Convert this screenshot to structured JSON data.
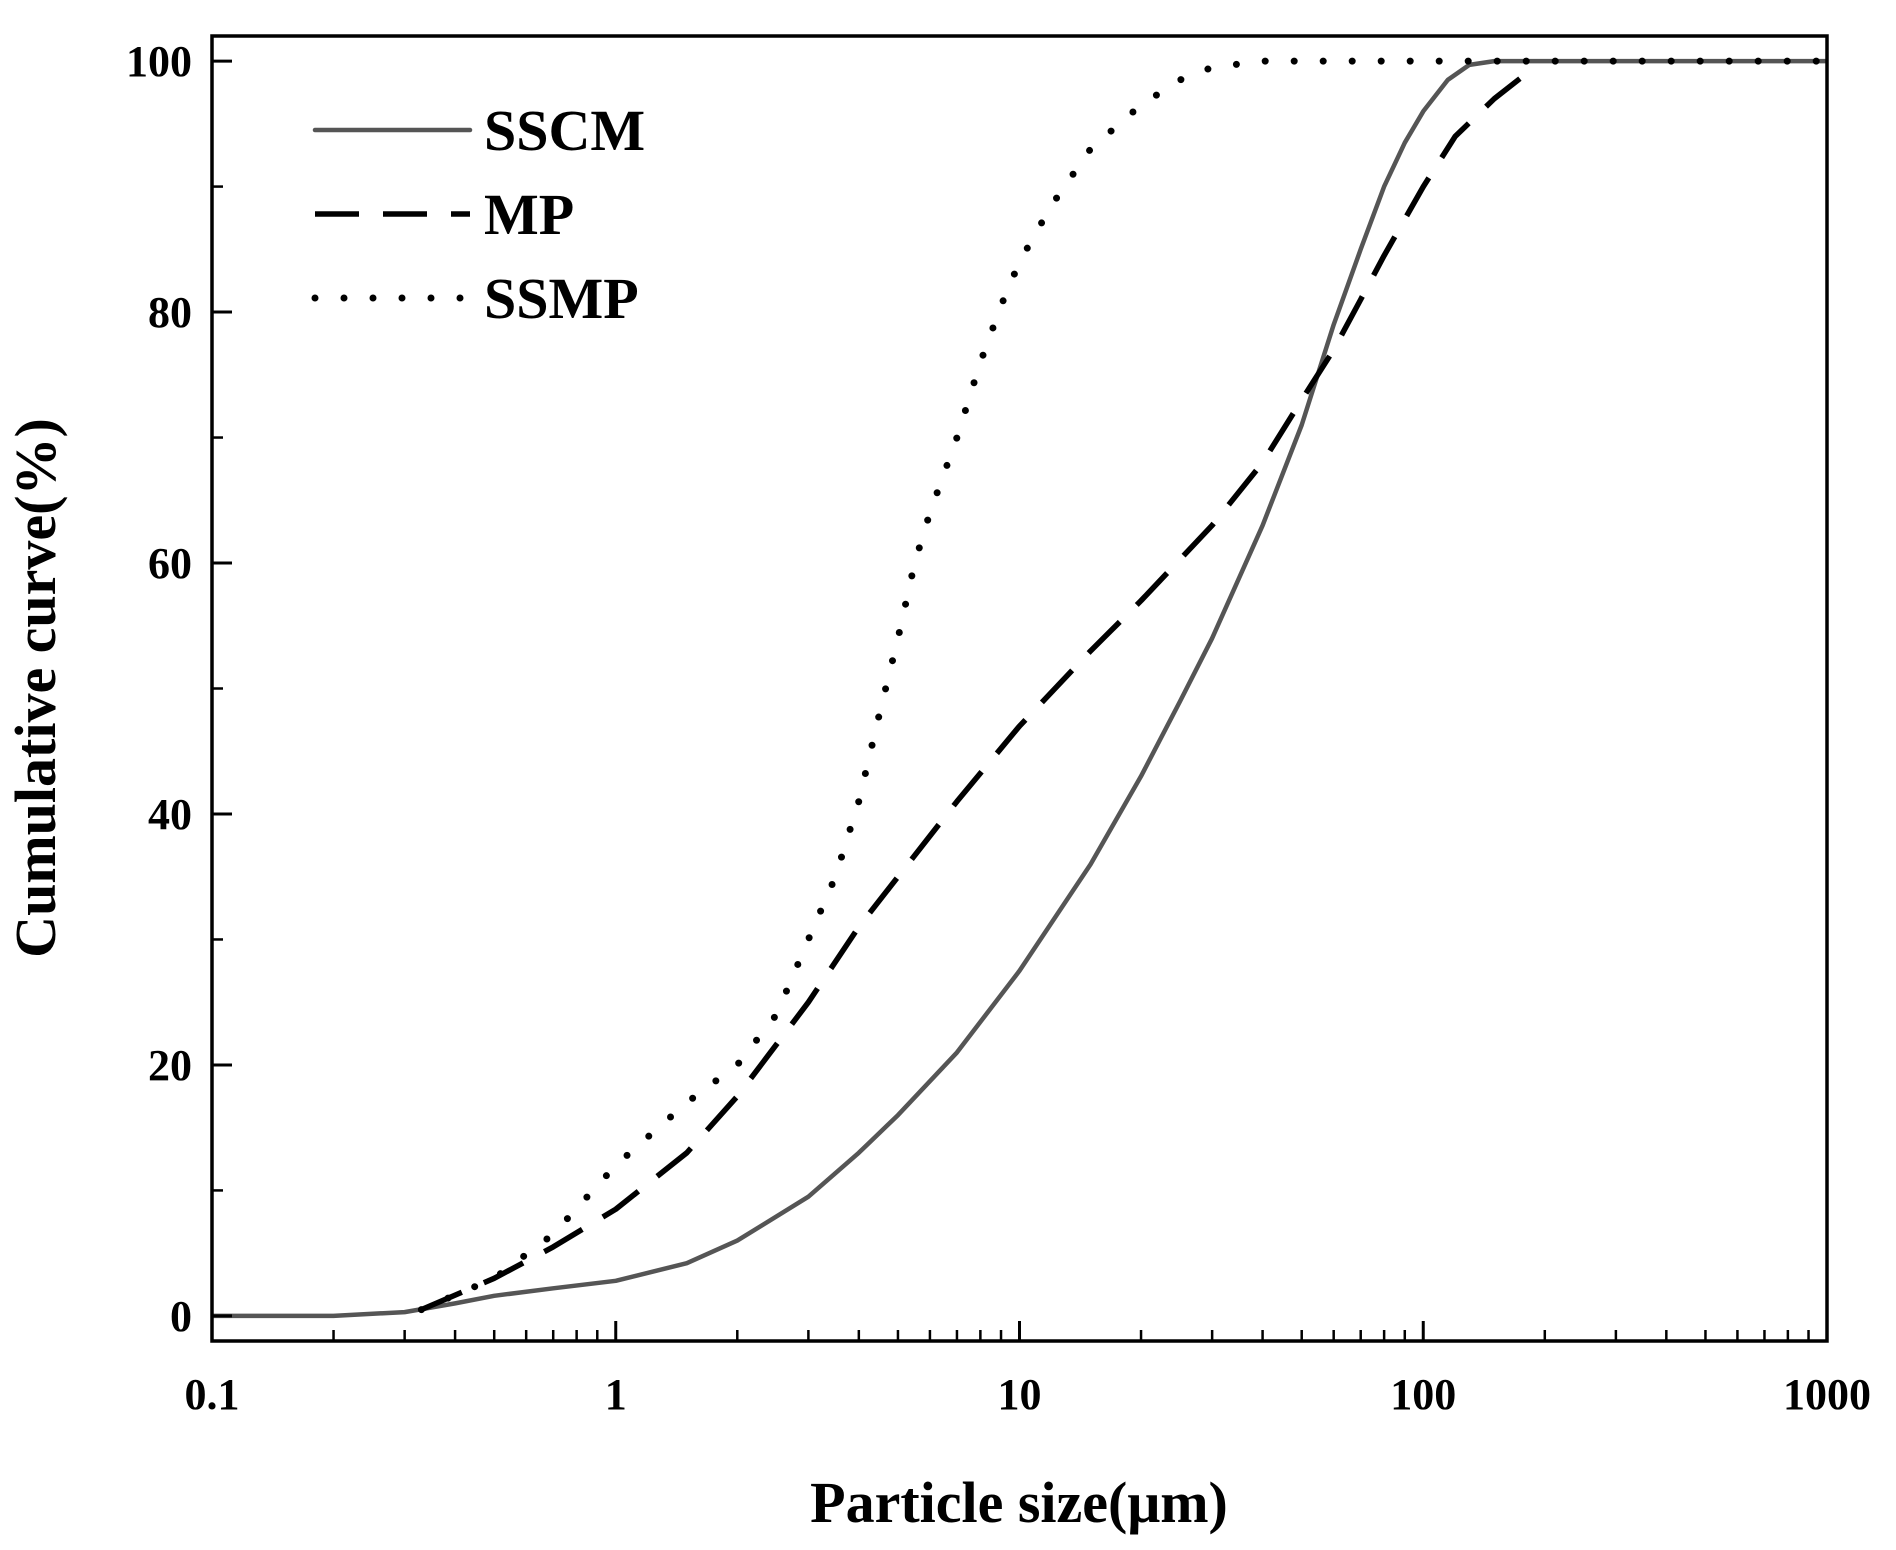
{
  "chart_data": {
    "type": "line",
    "title": "",
    "xlabel": "Particle size(μm)",
    "ylabel": "Cumulative curve(%)",
    "xscale": "log",
    "xlim": [
      0.1,
      1000
    ],
    "ylim": [
      -2,
      102
    ],
    "xticks": [
      {
        "value": 0.1,
        "label": "0.1"
      },
      {
        "value": 1,
        "label": "1"
      },
      {
        "value": 10,
        "label": "10"
      },
      {
        "value": 100,
        "label": "100"
      },
      {
        "value": 1000,
        "label": "1000"
      }
    ],
    "yticks": [
      {
        "value": 0,
        "label": "0"
      },
      {
        "value": 20,
        "label": "20"
      },
      {
        "value": 40,
        "label": "40"
      },
      {
        "value": 60,
        "label": "60"
      },
      {
        "value": 80,
        "label": "80"
      },
      {
        "value": 100,
        "label": "100"
      }
    ],
    "legend_position": "top-left",
    "series": [
      {
        "name": "SSCM",
        "style": "solid",
        "color": "#555555",
        "points": [
          [
            0.1,
            0
          ],
          [
            0.2,
            0
          ],
          [
            0.3,
            0.3
          ],
          [
            0.4,
            1.0
          ],
          [
            0.5,
            1.6
          ],
          [
            0.7,
            2.2
          ],
          [
            1,
            2.8
          ],
          [
            1.5,
            4.2
          ],
          [
            2,
            6
          ],
          [
            3,
            9.5
          ],
          [
            4,
            13
          ],
          [
            5,
            16
          ],
          [
            7,
            21
          ],
          [
            10,
            27.5
          ],
          [
            15,
            36
          ],
          [
            20,
            43
          ],
          [
            25,
            49
          ],
          [
            30,
            54
          ],
          [
            40,
            63
          ],
          [
            50,
            71
          ],
          [
            60,
            79
          ],
          [
            70,
            85
          ],
          [
            80,
            90
          ],
          [
            90,
            93.5
          ],
          [
            100,
            96
          ],
          [
            115,
            98.5
          ],
          [
            130,
            99.7
          ],
          [
            150,
            100
          ],
          [
            1000,
            100
          ]
        ]
      },
      {
        "name": "MP",
        "style": "dashed",
        "color": "#000000",
        "points": [
          [
            0.33,
            0.5
          ],
          [
            0.5,
            3
          ],
          [
            0.7,
            5.5
          ],
          [
            1,
            8.5
          ],
          [
            1.5,
            13
          ],
          [
            2,
            17.5
          ],
          [
            3,
            25
          ],
          [
            4,
            31
          ],
          [
            5,
            35
          ],
          [
            7,
            41
          ],
          [
            10,
            47
          ],
          [
            15,
            53
          ],
          [
            20,
            57
          ],
          [
            30,
            63
          ],
          [
            40,
            68
          ],
          [
            50,
            73
          ],
          [
            60,
            77
          ],
          [
            70,
            81
          ],
          [
            80,
            84.5
          ],
          [
            100,
            90
          ],
          [
            120,
            94
          ],
          [
            150,
            97
          ],
          [
            180,
            99
          ]
        ]
      },
      {
        "name": "SSMP",
        "style": "dotted",
        "color": "#000000",
        "points": [
          [
            0.33,
            0.5
          ],
          [
            0.5,
            3
          ],
          [
            0.7,
            6.5
          ],
          [
            1,
            12
          ],
          [
            1.5,
            17
          ],
          [
            2,
            20
          ],
          [
            2.5,
            24
          ],
          [
            3,
            30
          ],
          [
            3.5,
            35
          ],
          [
            4,
            41
          ],
          [
            4.5,
            48
          ],
          [
            5,
            54
          ],
          [
            5.5,
            60
          ],
          [
            6,
            64
          ],
          [
            7,
            70
          ],
          [
            8,
            76
          ],
          [
            9,
            80.5
          ],
          [
            10,
            84
          ],
          [
            12,
            88.5
          ],
          [
            15,
            93
          ],
          [
            20,
            96.5
          ],
          [
            25,
            98.5
          ],
          [
            30,
            99.5
          ],
          [
            40,
            100
          ],
          [
            1000,
            100
          ]
        ]
      }
    ]
  }
}
